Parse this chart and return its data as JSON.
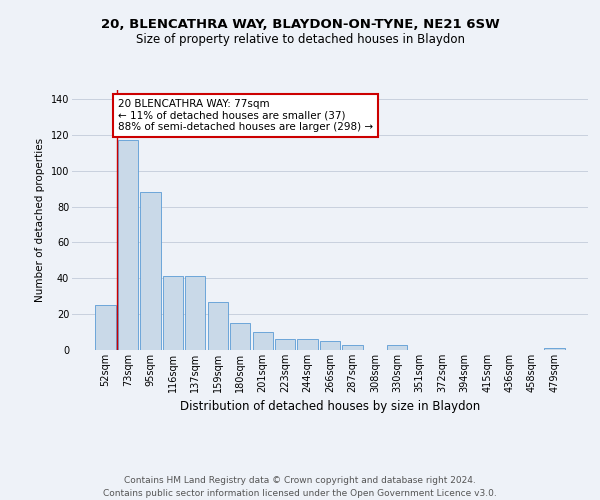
{
  "title1": "20, BLENCATHRA WAY, BLAYDON-ON-TYNE, NE21 6SW",
  "title2": "Size of property relative to detached houses in Blaydon",
  "xlabel": "Distribution of detached houses by size in Blaydon",
  "ylabel": "Number of detached properties",
  "categories": [
    "52sqm",
    "73sqm",
    "95sqm",
    "116sqm",
    "137sqm",
    "159sqm",
    "180sqm",
    "201sqm",
    "223sqm",
    "244sqm",
    "266sqm",
    "287sqm",
    "308sqm",
    "330sqm",
    "351sqm",
    "372sqm",
    "394sqm",
    "415sqm",
    "436sqm",
    "458sqm",
    "479sqm"
  ],
  "values": [
    25,
    117,
    88,
    41,
    41,
    27,
    15,
    10,
    6,
    6,
    5,
    3,
    0,
    3,
    0,
    0,
    0,
    0,
    0,
    0,
    1
  ],
  "bar_color": "#c9d9e8",
  "bar_edge_color": "#5b9bd5",
  "highlight_bar_index": 1,
  "highlight_line_color": "#cc0000",
  "annotation_text": "20 BLENCATHRA WAY: 77sqm\n← 11% of detached houses are smaller (37)\n88% of semi-detached houses are larger (298) →",
  "annotation_box_color": "#ffffff",
  "annotation_box_edge_color": "#cc0000",
  "ylim": [
    0,
    145
  ],
  "yticks": [
    0,
    20,
    40,
    60,
    80,
    100,
    120,
    140
  ],
  "footnote": "Contains HM Land Registry data © Crown copyright and database right 2024.\nContains public sector information licensed under the Open Government Licence v3.0.",
  "background_color": "#eef2f8",
  "grid_color": "#c8d0de",
  "title1_fontsize": 9.5,
  "title2_fontsize": 8.5,
  "xlabel_fontsize": 8.5,
  "ylabel_fontsize": 7.5,
  "tick_fontsize": 7,
  "annotation_fontsize": 7.5,
  "footnote_fontsize": 6.5
}
